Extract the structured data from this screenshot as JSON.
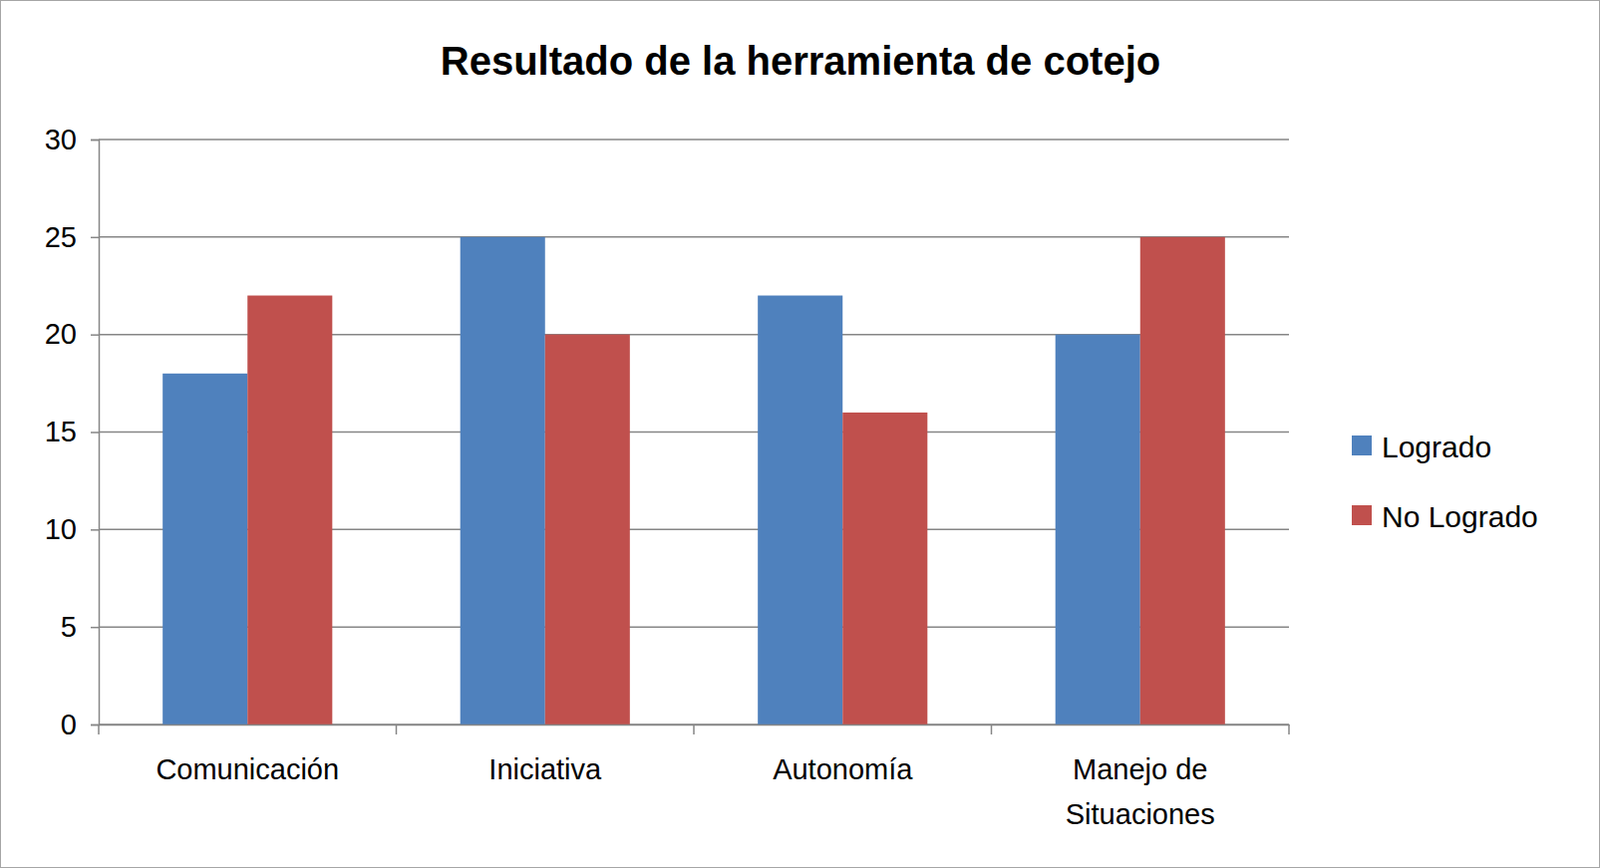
{
  "chart_data": {
    "type": "bar",
    "title": "Resultado de la herramienta de cotejo",
    "categories": [
      "Comunicación",
      "Iniciativa",
      "Autonomía",
      "Manejo de Situaciones"
    ],
    "series": [
      {
        "name": "Logrado",
        "color": "#4f81bd",
        "values": [
          18,
          25,
          22,
          20
        ]
      },
      {
        "name": "No Logrado",
        "color": "#c0504d",
        "values": [
          22,
          20,
          16,
          25
        ]
      }
    ],
    "ylim": [
      0,
      30
    ],
    "yticks": [
      0,
      5,
      10,
      15,
      20,
      25,
      30
    ],
    "grid": true,
    "legend": "right"
  }
}
